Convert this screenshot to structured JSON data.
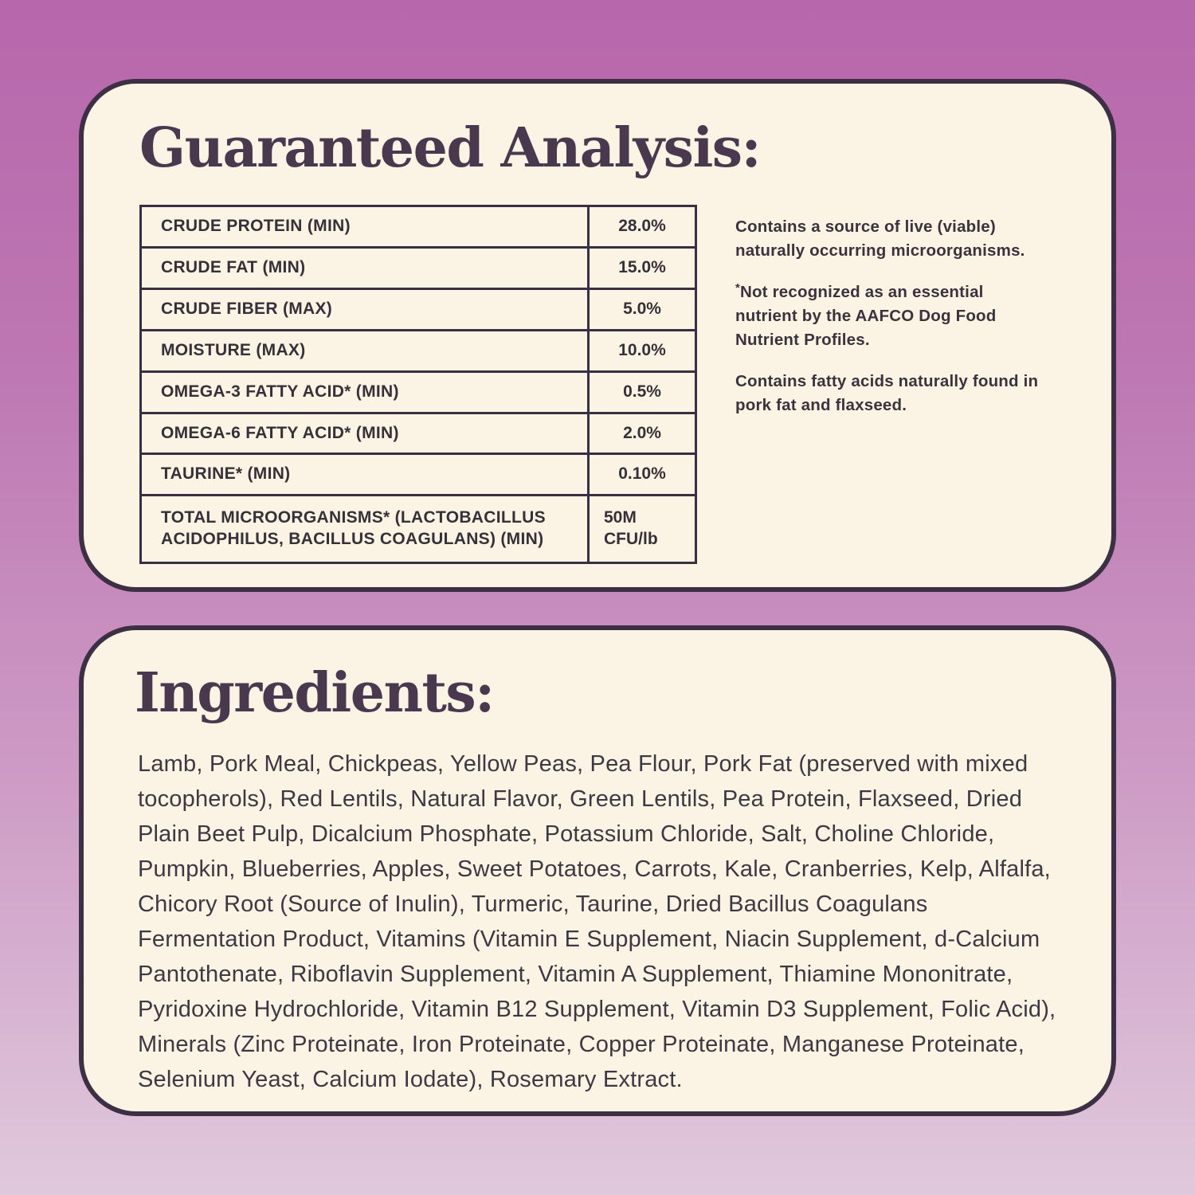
{
  "colors": {
    "background_top": "#b767ac",
    "background_bottom": "#e0c9dc",
    "panel_background": "#fbf4e4",
    "panel_border": "#3d3044",
    "heading_text": "#4a384f",
    "body_text": "#3e3843"
  },
  "guaranteed_analysis": {
    "title": "Guaranteed Analysis:",
    "table": {
      "rows": [
        {
          "label": "CRUDE PROTEIN (MIN)",
          "value": "28.0%"
        },
        {
          "label": "CRUDE FAT (MIN)",
          "value": "15.0%"
        },
        {
          "label": "CRUDE FIBER (MAX)",
          "value": "5.0%"
        },
        {
          "label": "MOISTURE (MAX)",
          "value": "10.0%"
        },
        {
          "label": "OMEGA-3 FATTY ACID* (MIN)",
          "value": "0.5%"
        },
        {
          "label": "OMEGA-6 FATTY ACID* (MIN)",
          "value": "2.0%"
        },
        {
          "label": "TAURINE* (MIN)",
          "value": "0.10%"
        },
        {
          "label": "TOTAL MICROORGANISMS* (LACTOBACILLUS ACIDOPHILUS, BACILLUS COAGULANS) (MIN)",
          "value": "50M CFU/lb"
        }
      ]
    },
    "notes": [
      {
        "marker": "",
        "text": "Contains a source of live (viable) naturally occurring microorganisms."
      },
      {
        "marker": "*",
        "text": "Not recognized as an essential nutrient by the AAFCO Dog Food Nutrient Profiles."
      },
      {
        "marker": "",
        "text": "Contains fatty acids naturally found in pork fat and flaxseed."
      }
    ]
  },
  "ingredients": {
    "title": "Ingredients:",
    "text": "Lamb, Pork Meal, Chickpeas, Yellow Peas, Pea Flour, Pork Fat (preserved with mixed tocopherols), Red Lentils, Natural Flavor, Green Lentils, Pea Protein, Flaxseed, Dried Plain Beet Pulp, Dicalcium Phosphate, Potassium Chloride, Salt, Choline Chloride, Pumpkin, Blueberries, Apples, Sweet Potatoes, Carrots, Kale, Cranberries, Kelp, Alfalfa, Chicory Root (Source of Inulin), Turmeric, Taurine, Dried Bacillus Coagulans Fermentation Product, Vitamins (Vitamin E Supplement, Niacin Supplement, d-Calcium Pantothenate, Riboflavin Supplement, Vitamin A Supplement, Thiamine Mononitrate, Pyridoxine Hydrochloride, Vitamin B12 Supplement, Vitamin D3 Supplement, Folic Acid), Minerals (Zinc Proteinate, Iron Proteinate, Copper Proteinate, Manganese Proteinate, Selenium Yeast, Calcium Iodate), Rosemary Extract."
  }
}
